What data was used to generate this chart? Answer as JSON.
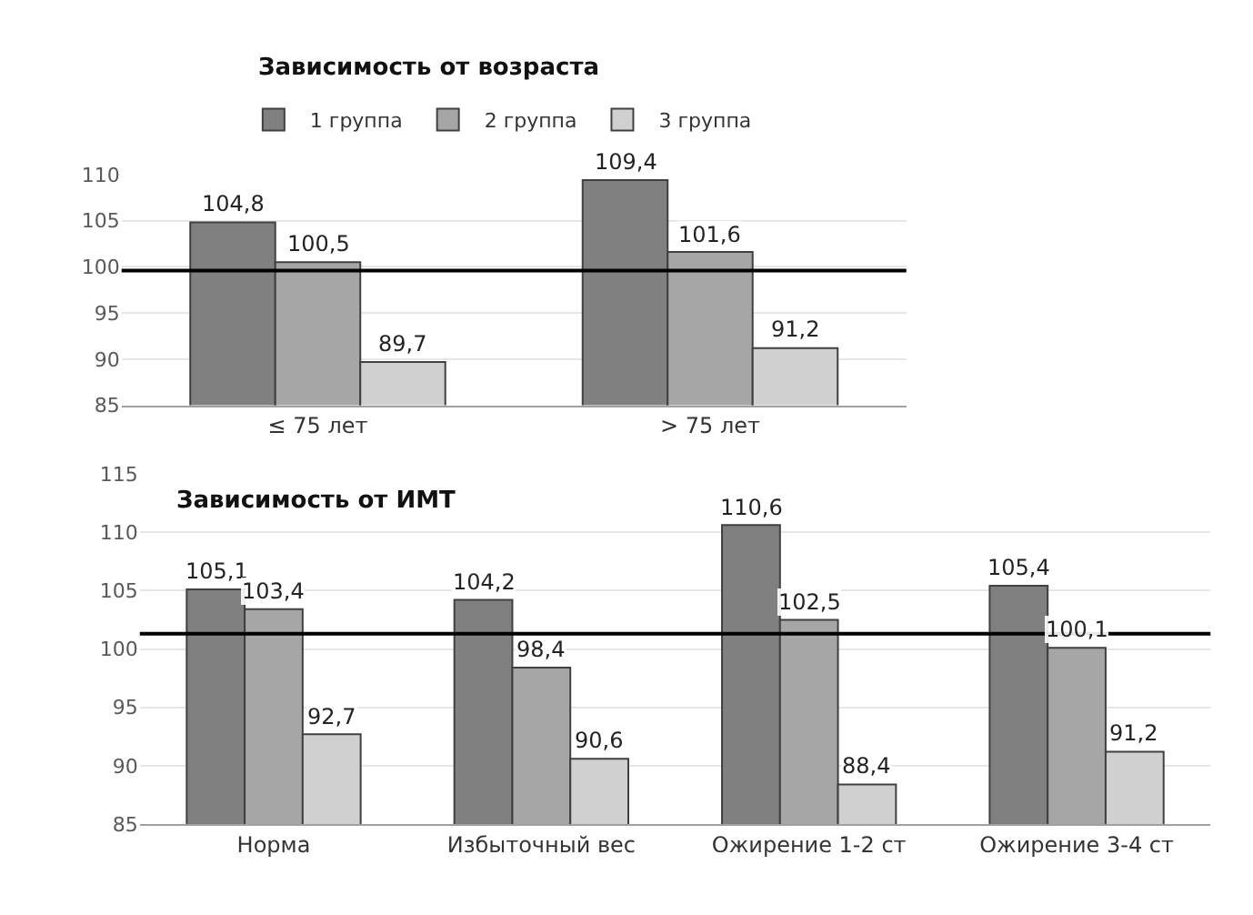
{
  "chart_data": [
    {
      "type": "bar",
      "title": "Зависимость от возраста",
      "categories": [
        "≤ 75 лет",
        "> 75 лет"
      ],
      "series": [
        {
          "name": "1 группа",
          "color": "#808080",
          "values": [
            104.8,
            109.4
          ],
          "value_labels": [
            "104,8",
            "109,4"
          ]
        },
        {
          "name": "2 группа",
          "color": "#a6a6a6",
          "values": [
            100.5,
            101.6
          ],
          "value_labels": [
            "100,5",
            "101,6"
          ]
        },
        {
          "name": "3 группа",
          "color": "#d0d0d0",
          "values": [
            89.7,
            91.2
          ],
          "value_labels": [
            "89,7",
            "91,2"
          ]
        }
      ],
      "ylim": [
        85,
        110
      ],
      "yticks": [
        85,
        90,
        95,
        100,
        105,
        110
      ],
      "grid": "y",
      "legend": "top",
      "ref_lines": [
        {
          "axis": "y",
          "value": 99.6,
          "color": "#000000"
        }
      ]
    },
    {
      "type": "bar",
      "title": "Зависимость от ИМТ",
      "categories": [
        "Норма",
        "Избыточный вес",
        "Ожирение 1-2 ст",
        "Ожирение 3-4 ст"
      ],
      "series": [
        {
          "color": "#808080",
          "values": [
            105.1,
            104.2,
            110.6,
            105.4
          ],
          "value_labels": [
            "105,1",
            "104,2",
            "110,6",
            "105,4"
          ]
        },
        {
          "color": "#a6a6a6",
          "values": [
            103.4,
            98.4,
            102.5,
            100.1
          ],
          "value_labels": [
            "103,4",
            "98,4",
            "102,5",
            "100,1"
          ]
        },
        {
          "color": "#d0d0d0",
          "values": [
            92.7,
            90.6,
            88.4,
            91.2
          ],
          "value_labels": [
            "92,7",
            "90,6",
            "88,4",
            "91,2"
          ]
        }
      ],
      "ylim": [
        85,
        115
      ],
      "yticks": [
        85,
        90,
        95,
        100,
        105,
        110,
        115
      ],
      "grid": "y",
      "ref_lines": [
        {
          "axis": "y",
          "value": 101.3,
          "color": "#000000"
        }
      ]
    }
  ]
}
